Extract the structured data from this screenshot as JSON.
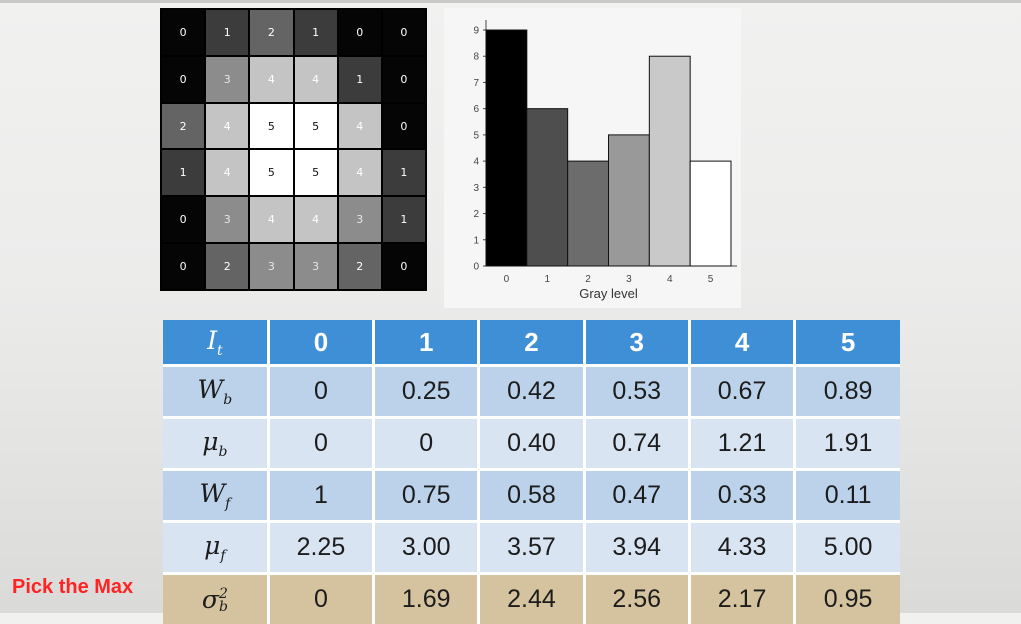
{
  "pixel_grid": {
    "values": [
      [
        0,
        1,
        2,
        1,
        0,
        0
      ],
      [
        0,
        3,
        4,
        4,
        1,
        0
      ],
      [
        2,
        4,
        5,
        5,
        4,
        0
      ],
      [
        1,
        4,
        5,
        5,
        4,
        1
      ],
      [
        0,
        3,
        4,
        4,
        3,
        1
      ],
      [
        0,
        2,
        3,
        3,
        2,
        0
      ]
    ],
    "gray_colors": [
      "#050505",
      "#3c3c3c",
      "#646464",
      "#8c8c8c",
      "#c4c4c4",
      "#ffffff"
    ],
    "text_colors": [
      "#ffffff",
      "#ffffff",
      "#ffffff",
      "#e6e6e6",
      "#ffffff",
      "#111111"
    ]
  },
  "chart_data": {
    "type": "bar",
    "categories": [
      "0",
      "1",
      "2",
      "3",
      "4",
      "5"
    ],
    "values": [
      9,
      6,
      4,
      5,
      8,
      4
    ],
    "colors": [
      "#000000",
      "#4e4e4e",
      "#6c6c6c",
      "#999999",
      "#c9c9c9",
      "#ffffff"
    ],
    "xlabel": "Gray level",
    "ylabel": "",
    "ylim": [
      0,
      9
    ],
    "yticks": [
      "0",
      "1",
      "2",
      "3",
      "4",
      "5",
      "6",
      "7",
      "8",
      "9"
    ]
  },
  "table": {
    "header": {
      "symbol": "I",
      "symbol_sub": "t",
      "values": [
        "0",
        "1",
        "2",
        "3",
        "4",
        "5"
      ]
    },
    "rows": [
      {
        "symbol": "W",
        "sub": "b",
        "sup": "",
        "values": [
          "0",
          "0.25",
          "0.42",
          "0.53",
          "0.67",
          "0.89"
        ]
      },
      {
        "symbol": "μ",
        "sub": "b",
        "sup": "",
        "values": [
          "0",
          "0",
          "0.40",
          "0.74",
          "1.21",
          "1.91"
        ]
      },
      {
        "symbol": "W",
        "sub": "f",
        "sup": "",
        "values": [
          "1",
          "0.75",
          "0.58",
          "0.47",
          "0.33",
          "0.11"
        ]
      },
      {
        "symbol": "μ",
        "sub": "f",
        "sup": "",
        "values": [
          "2.25",
          "3.00",
          "3.57",
          "3.94",
          "4.33",
          "5.00"
        ]
      },
      {
        "symbol": "σ",
        "sub": "b",
        "sup": "2",
        "values": [
          "0",
          "1.69",
          "2.44",
          "2.56",
          "2.17",
          "0.95"
        ]
      }
    ]
  },
  "annotation": {
    "pick_max": "Pick the Max",
    "color": "#ff2323"
  }
}
